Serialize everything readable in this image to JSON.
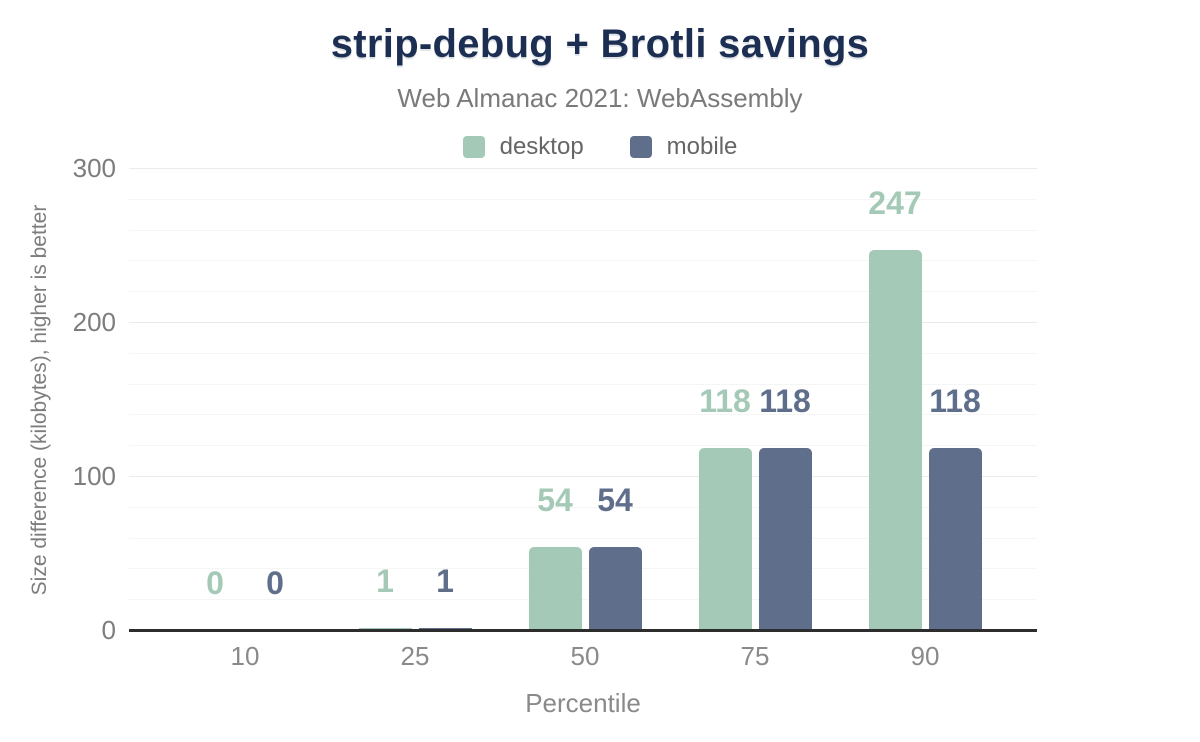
{
  "chart_data": {
    "type": "bar",
    "title": "strip-debug + Brotli savings",
    "subtitle": "Web Almanac 2021: WebAssembly",
    "categories": [
      "10",
      "25",
      "50",
      "75",
      "90"
    ],
    "series": [
      {
        "name": "desktop",
        "color": "#a4c9b6",
        "values": [
          0,
          1,
          54,
          118,
          247
        ]
      },
      {
        "name": "mobile",
        "color": "#5f6e8b",
        "values": [
          0,
          1,
          54,
          118,
          118
        ]
      }
    ],
    "xlabel": "Percentile",
    "ylabel": "Size difference (kilobytes), higher is better",
    "ylim": [
      0,
      300
    ],
    "yticks": [
      0,
      100,
      200,
      300
    ],
    "ytick_labels": [
      "0",
      "100",
      "200",
      "300"
    ],
    "grid": true,
    "grid_minor_interval": 20,
    "grid_major_interval": 100,
    "legend_position": "top",
    "data_labels": true,
    "colors": {
      "title_text": "#1c2f52",
      "subtitle_text": "#7a7a7a",
      "legend_text": "#666666",
      "tick_text": "#7d7d7d",
      "axis_title_text": "#8a8a8a",
      "axis_line": "#2d2d2d",
      "grid_minor": "#f5f5f6",
      "grid_major": "#ebebee"
    }
  }
}
